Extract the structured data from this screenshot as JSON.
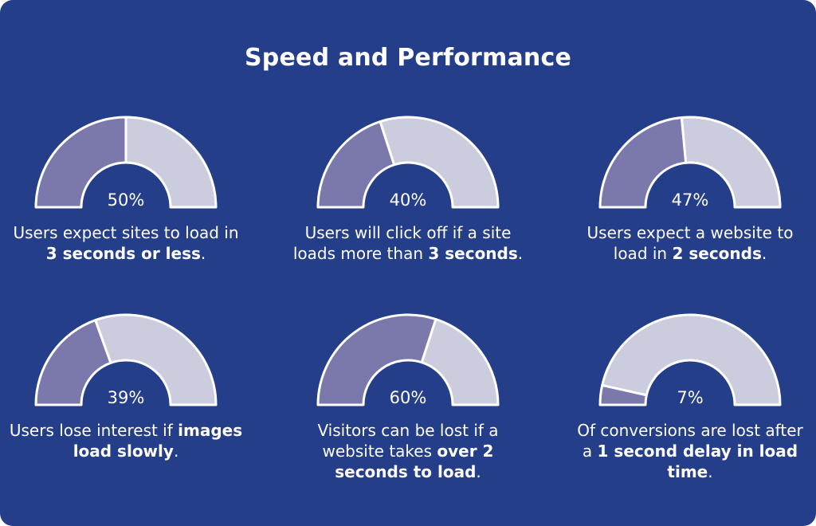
{
  "title": "Speed and Performance",
  "colors": {
    "background": "#253e8a",
    "filled": "#7b78ab",
    "remaining": "#ccccdf",
    "stroke": "#ffffff",
    "text": "#ffffff"
  },
  "chart_data": {
    "type": "gauge",
    "gauges": [
      {
        "value": 50,
        "value_label": "50%",
        "caption": [
          {
            "text": "Users expect sites to load in ",
            "bold": false
          },
          {
            "text": "3 seconds or less",
            "bold": true
          },
          {
            "text": ".",
            "bold": false
          }
        ]
      },
      {
        "value": 40,
        "value_label": "40%",
        "caption": [
          {
            "text": "Users will click off if a site loads more than ",
            "bold": false
          },
          {
            "text": "3 seconds",
            "bold": true
          },
          {
            "text": ".",
            "bold": false
          }
        ]
      },
      {
        "value": 47,
        "value_label": "47%",
        "caption": [
          {
            "text": "Users expect a website to load in ",
            "bold": false
          },
          {
            "text": "2 seconds",
            "bold": true
          },
          {
            "text": ".",
            "bold": false
          }
        ]
      },
      {
        "value": 39,
        "value_label": "39%",
        "caption": [
          {
            "text": "Users lose interest if ",
            "bold": false
          },
          {
            "text": "images load slowly",
            "bold": true
          },
          {
            "text": ".",
            "bold": false
          }
        ]
      },
      {
        "value": 60,
        "value_label": "60%",
        "caption": [
          {
            "text": "Visitors can be lost if a website takes ",
            "bold": false
          },
          {
            "text": "over 2 seconds to load",
            "bold": true
          },
          {
            "text": ".",
            "bold": false
          }
        ]
      },
      {
        "value": 7,
        "value_label": "7%",
        "caption": [
          {
            "text": "Of conversions are lost after a ",
            "bold": false
          },
          {
            "text": "1 second delay in load time",
            "bold": true
          },
          {
            "text": ".",
            "bold": false
          }
        ]
      }
    ]
  }
}
